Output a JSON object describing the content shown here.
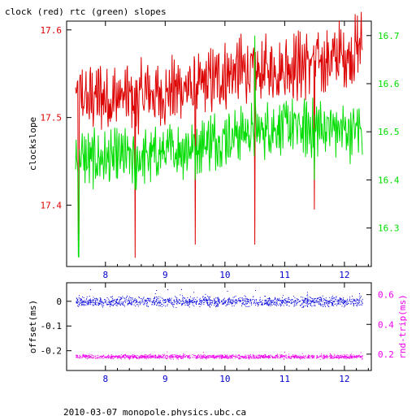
{
  "page": {
    "title": "clock (red) rtc (green) slopes",
    "footer": "2010-03-07  monopole.physics.ubc.ca"
  },
  "colors": {
    "clock": "#dd0000",
    "rtc": "#00dd00",
    "offset": "#0000dd",
    "rtt": "#ee00ee",
    "axes": "#000000"
  },
  "chart_data": [
    {
      "type": "line",
      "panel": "slopes",
      "ylabel": "clockslope",
      "x_ticks": [
        "8",
        "9",
        "10",
        "11",
        "12"
      ],
      "xlim": [
        7.35,
        12.45
      ],
      "ylim_left": [
        17.33,
        17.61
      ],
      "ylim_right": [
        16.22,
        16.73
      ],
      "left_ticks": [
        "17.4",
        "17.5",
        "17.6"
      ],
      "right_ticks": [
        "16.3",
        "16.4",
        "16.5",
        "16.6",
        "16.7"
      ],
      "series": [
        {
          "axis": "left",
          "x": [
            7.5,
            7.7,
            7.9,
            8.1,
            8.3,
            8.5,
            8.7,
            8.9,
            9.1,
            9.3,
            9.5,
            9.7,
            9.9,
            10.1,
            10.3,
            10.5,
            10.7,
            10.9,
            11.1,
            11.3,
            11.5,
            11.7,
            11.9,
            12.1,
            12.3
          ],
          "values": [
            17.525,
            17.52,
            17.525,
            17.52,
            17.525,
            17.52,
            17.53,
            17.525,
            17.53,
            17.535,
            17.53,
            17.54,
            17.545,
            17.55,
            17.555,
            17.55,
            17.555,
            17.555,
            17.56,
            17.56,
            17.565,
            17.565,
            17.57,
            17.57,
            17.585
          ],
          "spikes": [
            {
              "x": 7.55,
              "value": 17.36
            },
            {
              "x": 8.5,
              "value": 17.34
            },
            {
              "x": 9.5,
              "value": 17.355
            },
            {
              "x": 10.5,
              "value": 17.355
            },
            {
              "x": 11.5,
              "value": 17.395
            }
          ]
        },
        {
          "axis": "right",
          "x": [
            7.5,
            7.7,
            7.9,
            8.1,
            8.3,
            8.5,
            8.7,
            8.9,
            9.1,
            9.3,
            9.5,
            9.7,
            9.9,
            10.1,
            10.3,
            10.5,
            10.7,
            10.9,
            11.1,
            11.3,
            11.5,
            11.7,
            11.9,
            12.1,
            12.3
          ],
          "values": [
            16.45,
            16.44,
            16.445,
            16.44,
            16.45,
            16.44,
            16.45,
            16.455,
            16.46,
            16.465,
            16.47,
            16.48,
            16.485,
            16.49,
            16.5,
            16.5,
            16.505,
            16.51,
            16.51,
            16.505,
            16.51,
            16.51,
            16.505,
            16.5,
            16.51
          ],
          "spikes": [
            {
              "x": 7.55,
              "value": 16.24
            },
            {
              "x": 8.5,
              "value": 16.38
            },
            {
              "x": 9.5,
              "value": 16.4
            },
            {
              "x": 10.5,
              "value": 16.7
            },
            {
              "x": 11.5,
              "value": 16.4
            }
          ]
        }
      ]
    },
    {
      "type": "scatter",
      "panel": "offset",
      "ylabel_left": "offset(ms)",
      "ylabel_right": "rnd-trip(ms)",
      "x_ticks": [
        "8",
        "9",
        "10",
        "11",
        "12"
      ],
      "xlim": [
        7.35,
        12.45
      ],
      "ylim_left": [
        -0.28,
        0.075
      ],
      "ylim_right": [
        0.09,
        0.68
      ],
      "left_ticks": [
        "0",
        "-0.1",
        "-0.2"
      ],
      "right_ticks": [
        "0.6",
        "0.4",
        "0.2"
      ],
      "series": [
        {
          "axis": "left",
          "x_range": [
            7.5,
            12.3
          ],
          "center": 0.0,
          "spread": 0.012
        },
        {
          "axis": "right",
          "x_range": [
            7.5,
            12.3
          ],
          "center": 0.185,
          "spread": 0.008
        }
      ]
    }
  ]
}
